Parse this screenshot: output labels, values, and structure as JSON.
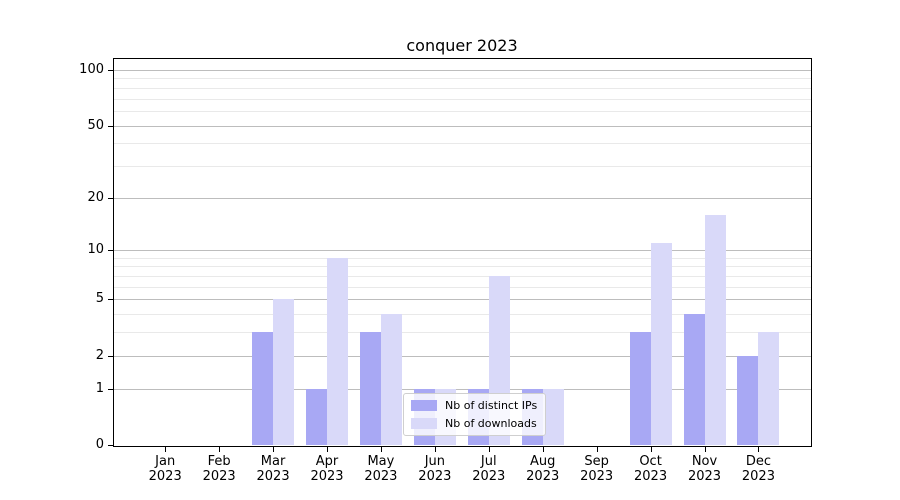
{
  "chart_data": {
    "type": "bar",
    "title": "conquer 2023",
    "x_months": [
      "Jan",
      "Feb",
      "Mar",
      "Apr",
      "May",
      "Jun",
      "Jul",
      "Aug",
      "Sep",
      "Oct",
      "Nov",
      "Dec"
    ],
    "x_year": "2023",
    "categories": [
      "Jan 2023",
      "Feb 2023",
      "Mar 2023",
      "Apr 2023",
      "May 2023",
      "Jun 2023",
      "Jul 2023",
      "Aug 2023",
      "Sep 2023",
      "Oct 2023",
      "Nov 2023",
      "Dec 2023"
    ],
    "series": [
      {
        "name": "Nb of distinct IPs",
        "color": "#a8a8f4",
        "values": [
          0,
          0,
          3,
          1,
          3,
          1,
          1,
          1,
          0,
          3,
          4,
          2
        ]
      },
      {
        "name": "Nb of downloads",
        "color": "#d9d9f9",
        "values": [
          0,
          0,
          5,
          9,
          4,
          1,
          7,
          1,
          0,
          11,
          16,
          3
        ]
      }
    ],
    "yscale": "log1p",
    "y_ticks": [
      0,
      1,
      2,
      5,
      10,
      20,
      50,
      100
    ],
    "y_tick_labels": [
      "0",
      "1",
      "2",
      "5",
      "10",
      "20",
      "50",
      "100"
    ],
    "y_minor_ticks": [
      3,
      4,
      6,
      7,
      8,
      9,
      30,
      40,
      60,
      70,
      80,
      90
    ],
    "ylim": [
      0,
      115
    ],
    "xlabel": "",
    "ylabel": "",
    "grid": true,
    "legend_position": "lower center",
    "colors": {
      "major_grid": "#bdbdbd",
      "minor_grid": "#e9e9e9",
      "spine": "#000000",
      "background": "#ffffff"
    }
  }
}
